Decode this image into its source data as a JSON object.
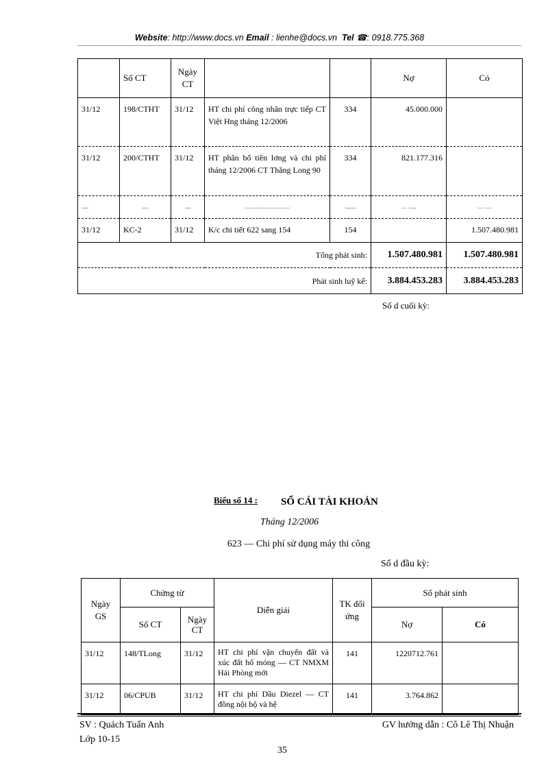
{
  "header": {
    "website_label": "Website",
    "website": ": http://www.docs.vn",
    "email_label": "Email",
    "email": " : lienhe@docs.vn",
    "tel_label": "Tel",
    "tel_icon": "phone-icon",
    "tel": ": 0918.775.368"
  },
  "table1": {
    "headers": [
      "",
      "Số CT",
      "Ngày CT",
      "",
      "",
      "Nợ",
      "Có"
    ],
    "rows": [
      [
        "31/12",
        "198/CTHT",
        "31/12",
        "HT chi phí công nhân trực tiếp CT Việt Hng tháng 12/2006",
        "334",
        "45.000.000",
        ""
      ],
      [
        "31/12",
        "200/CTHT",
        "31/12",
        "HT phân bổ tiền lơng và chi phí tháng 12/2006 CT Thăng Long 90",
        "334",
        "821.177.316",
        ""
      ],
      [
        ".....",
        ".....",
        "....",
        "…………………….",
        "........",
        "… …..",
        "… …."
      ],
      [
        "31/12",
        "KC-2",
        "31/12",
        "K/c chi tiết 622 sang 154",
        "154",
        "",
        "1.507.480.981"
      ]
    ],
    "total_label": "Tổng phát sinh:",
    "total_no": "1.507.480.981",
    "total_co": "1.507.480.981",
    "cum_label": "Phát sinh luỹ kế:",
    "cum_no": "3.884.453.283",
    "cum_co": "3.884.453.283"
  },
  "closing_balance": "Số d   cuối kỳ:",
  "section": {
    "label": "Biểu số 14 :",
    "title": "SỔ CÁI TÀI KHOẢN",
    "month": "Tháng 12/2006",
    "account": "623 — Chi phí sử dụng máy thi công",
    "opening_balance": "Số d   đầu kỳ:"
  },
  "table2": {
    "h_ngay_gs": "Ngày GS",
    "h_chung_tu": "Chứng từ",
    "h_so_ct": "Số CT",
    "h_ngay_ct": "Ngày CT",
    "h_dien_giai": "Diễn giải",
    "h_tk": "TK đối ứng",
    "h_so_phat_sinh": "Số phát sinh",
    "h_no": "Nợ",
    "h_co": "Có",
    "rows": [
      [
        "31/12",
        "148/TLong",
        "31/12",
        "HT chi phí vận chuyển đất và xúc đất hố móng — CT NMXM Hải Phòng mới",
        "141",
        "1220712.761",
        ""
      ],
      [
        "31/12",
        "06/CPUB",
        "31/12",
        "HT chi phí Dầu Diezel — CT đồng  nội bộ và hệ",
        "141",
        "3.764.862",
        ""
      ]
    ]
  },
  "footer": {
    "student": "SV : Quách Tuấn Anh",
    "class": "Lớp 10-15",
    "advisor": "GV hướng dẫn : Cô Lê Thị Nhuận",
    "page": "35"
  }
}
